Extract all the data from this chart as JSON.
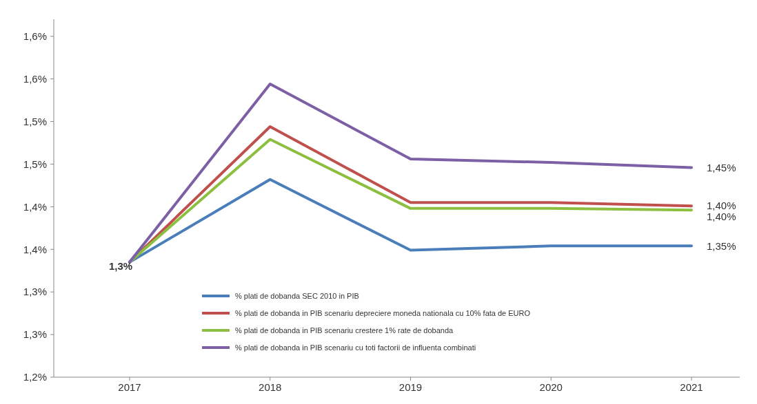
{
  "chart_data": {
    "type": "line",
    "categories": [
      "2017",
      "2018",
      "2019",
      "2020",
      "2021"
    ],
    "ylim": [
      1.2,
      1.62
    ],
    "yticks": [
      {
        "value": 1.2,
        "label": "1,2%"
      },
      {
        "value": 1.25,
        "label": "1,3%"
      },
      {
        "value": 1.3,
        "label": "1,3%"
      },
      {
        "value": 1.35,
        "label": "1,4%"
      },
      {
        "value": 1.4,
        "label": "1,4%"
      },
      {
        "value": 1.45,
        "label": "1,5%"
      },
      {
        "value": 1.5,
        "label": "1,5%"
      },
      {
        "value": 1.55,
        "label": "1,6%"
      },
      {
        "value": 1.6,
        "label": "1,6%"
      }
    ],
    "grid": false,
    "legend": "bottom",
    "marker": "none",
    "line_style": "solid",
    "series": [
      {
        "name": "% plati de dobanda SEC 2010 in PIB",
        "color": "#4a7ebb",
        "values": [
          1.335,
          1.432,
          1.349,
          1.354,
          1.354
        ],
        "value_labels": [
          "1,3%",
          null,
          null,
          null,
          "1,35%"
        ]
      },
      {
        "name": "% plati de dobanda in PIB scenariu depreciere moneda nationala cu 10% fata de  EURO",
        "color": "#c0504d",
        "values": [
          1.335,
          1.494,
          1.405,
          1.405,
          1.401
        ],
        "value_labels": [
          null,
          null,
          null,
          null,
          "1,40%"
        ]
      },
      {
        "name": "% plati de dobanda in PIB scenariu crestere 1% rate de dobanda",
        "color": "#8cbf3f",
        "values": [
          1.335,
          1.479,
          1.398,
          1.398,
          1.396
        ],
        "value_labels": [
          null,
          null,
          null,
          null,
          "1,40%"
        ]
      },
      {
        "name": "% plati de dobanda in PIB scenariu cu toti factorii de influenta combinati",
        "color": "#7d5fa6",
        "values": [
          1.335,
          1.544,
          1.456,
          1.452,
          1.446
        ],
        "value_labels": [
          null,
          null,
          null,
          null,
          "1,45%"
        ]
      }
    ]
  }
}
